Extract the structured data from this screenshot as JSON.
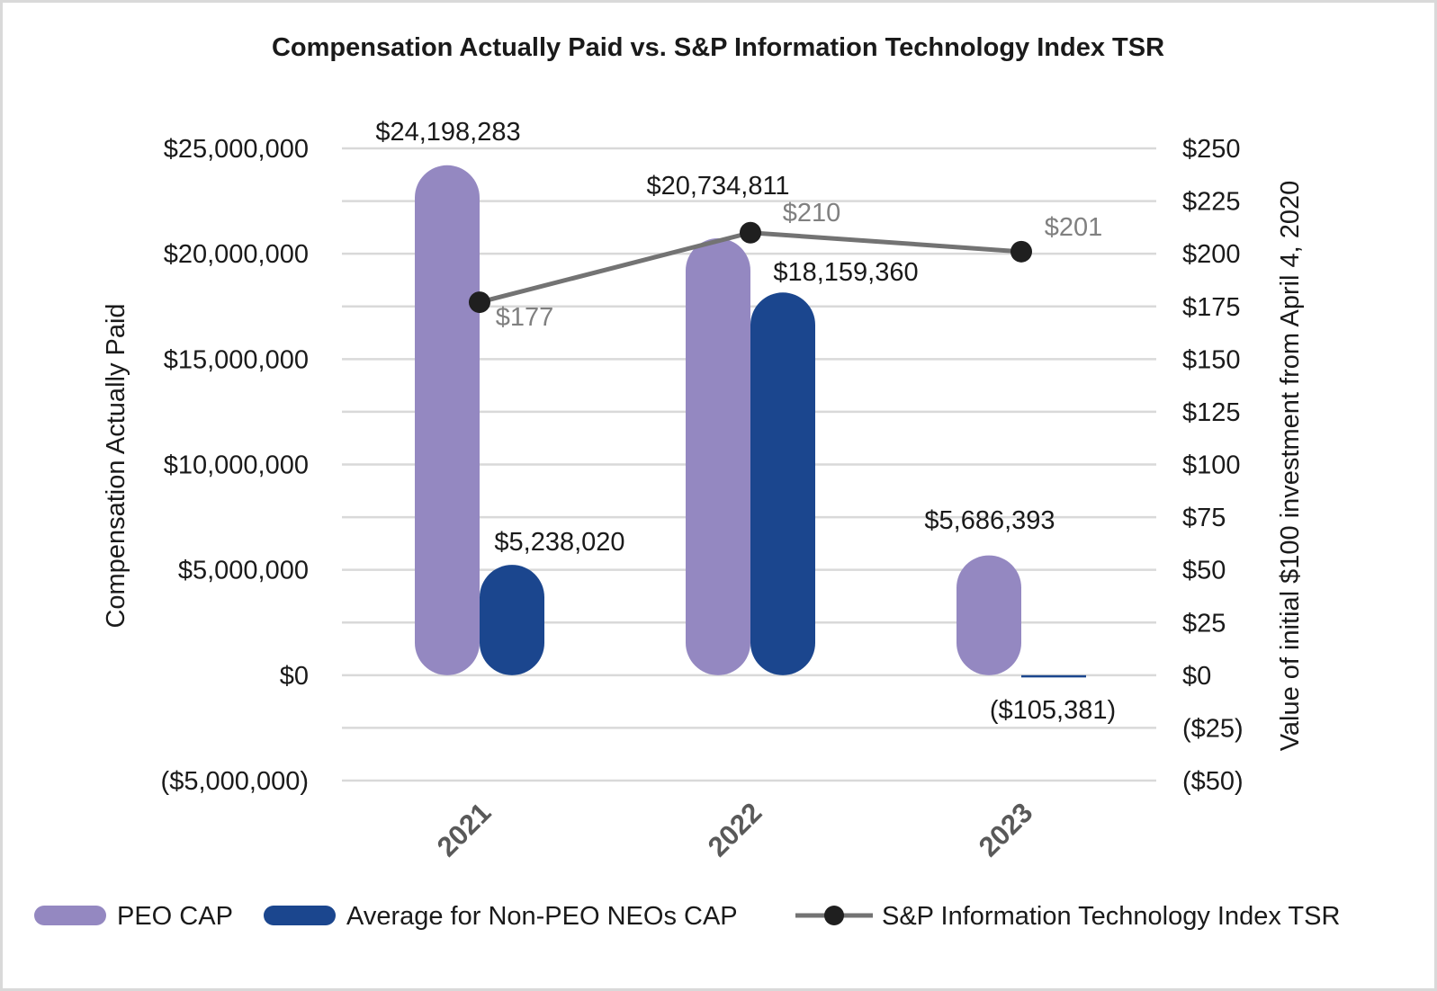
{
  "chart_data": {
    "type": "bar",
    "title": "Compensation Actually Paid vs. S&P Information Technology Index TSR",
    "categories": [
      "2021",
      "2022",
      "2023"
    ],
    "ylabel": "Compensation Actually Paid",
    "y2label": "Value of initial $100 investment from April 4, 2020",
    "ylim": [
      -5000000,
      25000000
    ],
    "y2lim": [
      -50,
      250
    ],
    "yticks": [
      {
        "v": 25000000,
        "label": "$25,000,000"
      },
      {
        "v": 20000000,
        "label": "$20,000,000"
      },
      {
        "v": 15000000,
        "label": "$15,000,000"
      },
      {
        "v": 10000000,
        "label": "$10,000,000"
      },
      {
        "v": 5000000,
        "label": "$5,000,000"
      },
      {
        "v": 0,
        "label": "$0"
      },
      {
        "v": -5000000,
        "label": "($5,000,000)"
      }
    ],
    "y2ticks": [
      {
        "v": 250,
        "label": "$250"
      },
      {
        "v": 225,
        "label": "$225"
      },
      {
        "v": 200,
        "label": "$200"
      },
      {
        "v": 175,
        "label": "$175"
      },
      {
        "v": 150,
        "label": "$150"
      },
      {
        "v": 125,
        "label": "$125"
      },
      {
        "v": 100,
        "label": "$100"
      },
      {
        "v": 75,
        "label": "$75"
      },
      {
        "v": 50,
        "label": "$50"
      },
      {
        "v": 25,
        "label": "$25"
      },
      {
        "v": 0,
        "label": "$0"
      },
      {
        "v": -25,
        "label": "($25)"
      },
      {
        "v": -50,
        "label": "($50)"
      }
    ],
    "series": [
      {
        "name": "PEO CAP",
        "type": "bar",
        "color": "#9488c1",
        "values": [
          24198283,
          20734811,
          5686393
        ],
        "labels": [
          "$24,198,283",
          "$20,734,811",
          "$5,686,393"
        ]
      },
      {
        "name": "Average for Non-PEO NEOs CAP",
        "type": "bar",
        "color": "#1b468e",
        "values": [
          5238020,
          18159360,
          -105381
        ],
        "labels": [
          "$5,238,020",
          "$18,159,360",
          "($105,381)"
        ]
      },
      {
        "name": "S&P Information Technology Index TSR",
        "type": "line",
        "axis": "right",
        "line_color": "#737373",
        "marker_color": "#1f1f1f",
        "values": [
          177,
          210,
          201
        ],
        "labels": [
          "$177",
          "$210",
          "$201"
        ]
      }
    ],
    "legend": "bottom"
  }
}
